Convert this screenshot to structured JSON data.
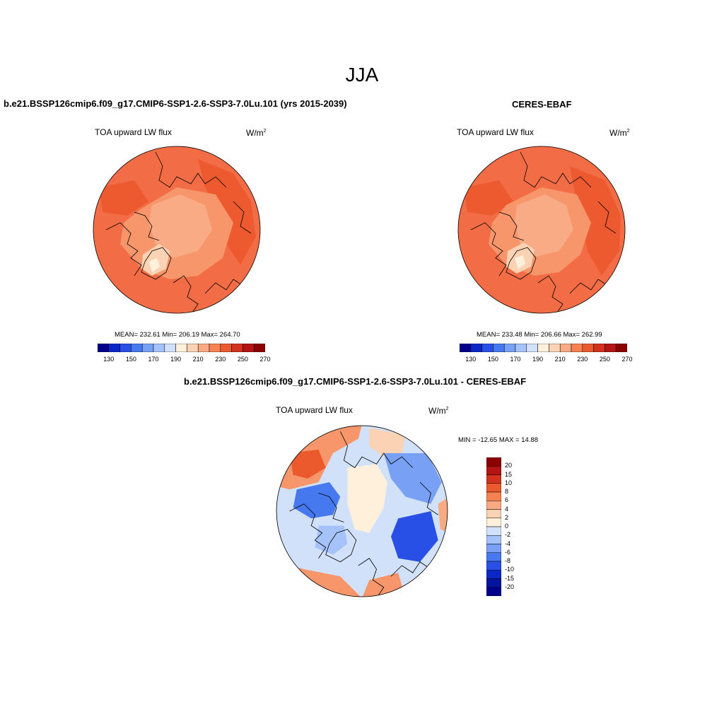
{
  "season": "JJA",
  "panels": {
    "model": {
      "title": "b.e21.BSSP126cmip6.f09_g17.CMIP6-SSP1-2.6-SSP3-7.0Lu.101 (yrs 2015-2039)",
      "variable": "TOA upward LW flux",
      "units_base": "W/m",
      "units_exp": "2",
      "stats": "MEAN= 232.61   Min= 206.19   Max= 264.70"
    },
    "obs": {
      "title": "CERES-EBAF",
      "variable": "TOA upward LW flux",
      "units_base": "W/m",
      "units_exp": "2",
      "stats": "MEAN= 233.48   Min= 206.66   Max= 262.99"
    },
    "diff": {
      "title": "b.e21.BSSP126cmip6.f09_g17.CMIP6-SSP1-2.6-SSP3-7.0Lu.101 - CERES-EBAF",
      "variable": "TOA upward LW flux",
      "units_base": "W/m",
      "units_exp": "2",
      "stats": "MIN = -12.65 MAX =  14.88"
    }
  },
  "colorbars": {
    "abs": {
      "colors": [
        "#00008c",
        "#0a28c8",
        "#2850e6",
        "#4678f0",
        "#78a0f5",
        "#a5c3fa",
        "#d2e1fa",
        "#fff0dc",
        "#fcd2b4",
        "#faaa82",
        "#f58250",
        "#eb5a2d",
        "#d2321e",
        "#b41414",
        "#8c0000"
      ],
      "labels": [
        "130",
        "150",
        "170",
        "190",
        "210",
        "230",
        "250",
        "270"
      ]
    },
    "diff": {
      "colors": [
        "#8c0000",
        "#b41414",
        "#d2321e",
        "#eb5a2d",
        "#f58250",
        "#faaa82",
        "#fcd2b4",
        "#fff0dc",
        "#d2e1fa",
        "#a5c3fa",
        "#78a0f5",
        "#4678f0",
        "#2850e6",
        "#0a28c8",
        "#0014a0",
        "#00008c"
      ],
      "labels": [
        "20",
        "15",
        "10",
        "8",
        "6",
        "4",
        "2",
        "0",
        "-2",
        "-4",
        "-6",
        "-8",
        "-10",
        "-15",
        "-20"
      ]
    }
  },
  "map_colors": {
    "land_line": "#000000",
    "model_base": "#f26d46",
    "model_mid": "#f8a47c",
    "model_light": "#fcd2b4",
    "diff_base": "#d2e1fa"
  }
}
